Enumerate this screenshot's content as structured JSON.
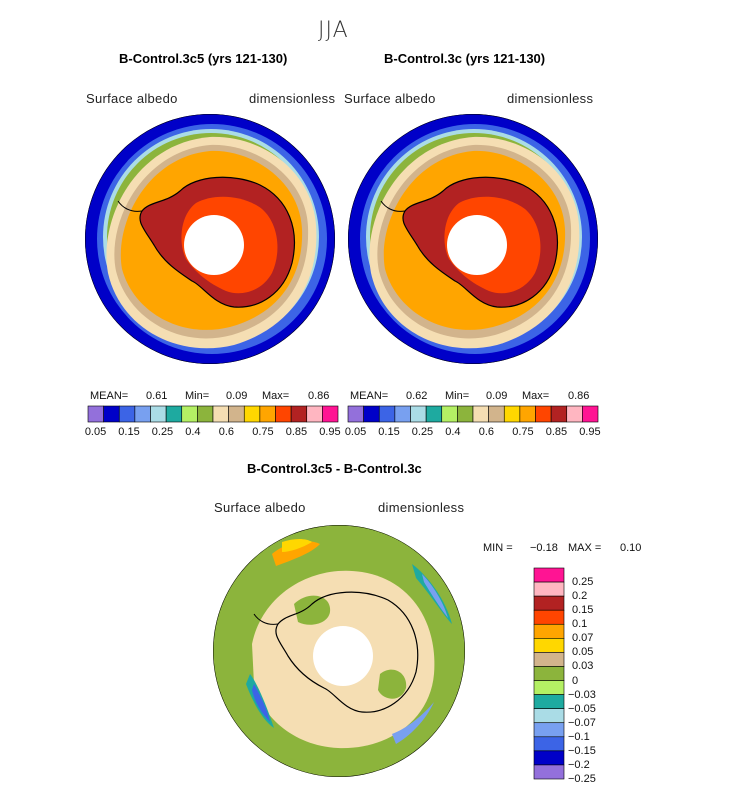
{
  "page": {
    "season": "JJA"
  },
  "panels": [
    {
      "title": "B-Control.3c5 (yrs 121-130)",
      "variable": "Surface albedo",
      "units": "dimensionless",
      "mean_label": "MEAN=",
      "mean": "0.61",
      "min_label": "Min=",
      "min": "0.09",
      "max_label": "Max=",
      "max": "0.86"
    },
    {
      "title": "B-Control.3c (yrs 121-130)",
      "variable": "Surface albedo",
      "units": "dimensionless",
      "mean_label": "MEAN=",
      "mean": "0.62",
      "min_label": "Min=",
      "min": "0.09",
      "max_label": "Max=",
      "max": "0.86"
    }
  ],
  "diff": {
    "title": "B-Control.3c5 - B-Control.3c",
    "variable": "Surface albedo",
    "units": "dimensionless",
    "min_label": "MIN =",
    "min": "−0.18",
    "max_label": "MAX =",
    "max": "0.10"
  },
  "chart_data": [
    {
      "type": "heatmap",
      "title": "B-Control.3c5 (yrs 121-130)",
      "subtitle": "Surface albedo",
      "units": "dimensionless",
      "projection": "south polar stereographic",
      "stats": {
        "mean": 0.61,
        "min": 0.09,
        "max": 0.86
      },
      "levels": [
        0.05,
        0.1,
        0.15,
        0.2,
        0.25,
        0.3,
        0.35,
        0.4,
        0.5,
        0.6,
        0.7,
        0.75,
        0.8,
        0.85,
        0.9,
        0.95
      ],
      "colorbar_tick_labels": [
        "0.05",
        "0.15",
        "0.25",
        "0.4",
        "0.6",
        "0.75",
        "0.85",
        "0.95"
      ],
      "colors": [
        "#9370db",
        "#0000c8",
        "#3c64e6",
        "#78a0f0",
        "#aadce6",
        "#1eaaa0",
        "#b4f064",
        "#8cb43c",
        "#f5deb3",
        "#d2b48c",
        "#ffd700",
        "#ffa500",
        "#ff4500",
        "#b22222",
        "#ffb6c1",
        "#ff1493"
      ]
    },
    {
      "type": "heatmap",
      "title": "B-Control.3c (yrs 121-130)",
      "subtitle": "Surface albedo",
      "units": "dimensionless",
      "projection": "south polar stereographic",
      "stats": {
        "mean": 0.62,
        "min": 0.09,
        "max": 0.86
      },
      "levels": [
        0.05,
        0.1,
        0.15,
        0.2,
        0.25,
        0.3,
        0.35,
        0.4,
        0.5,
        0.6,
        0.7,
        0.75,
        0.8,
        0.85,
        0.9,
        0.95
      ],
      "colorbar_tick_labels": [
        "0.05",
        "0.15",
        "0.25",
        "0.4",
        "0.6",
        "0.75",
        "0.85",
        "0.95"
      ],
      "colors": [
        "#9370db",
        "#0000c8",
        "#3c64e6",
        "#78a0f0",
        "#aadce6",
        "#1eaaa0",
        "#b4f064",
        "#8cb43c",
        "#f5deb3",
        "#d2b48c",
        "#ffd700",
        "#ffa500",
        "#ff4500",
        "#b22222",
        "#ffb6c1",
        "#ff1493"
      ]
    },
    {
      "type": "heatmap",
      "title": "B-Control.3c5 - B-Control.3c",
      "subtitle": "Surface albedo",
      "units": "dimensionless",
      "projection": "south polar stereographic",
      "stats": {
        "min": -0.18,
        "max": 0.1
      },
      "colorbar_tick_labels": [
        "0.25",
        "0.2",
        "0.15",
        "0.1",
        "0.07",
        "0.05",
        "0.03",
        "0",
        "−0.03",
        "−0.05",
        "−0.07",
        "−0.1",
        "−0.15",
        "−0.2",
        "−0.25"
      ],
      "colors": [
        "#ff1493",
        "#ffb6c1",
        "#b22222",
        "#ff4500",
        "#ffa500",
        "#ffd700",
        "#d2b48c",
        "#8cb43c",
        "#b4f064",
        "#1eaaa0",
        "#aadce6",
        "#78a0f0",
        "#3c64e6",
        "#0000c8",
        "#9370db"
      ]
    }
  ]
}
